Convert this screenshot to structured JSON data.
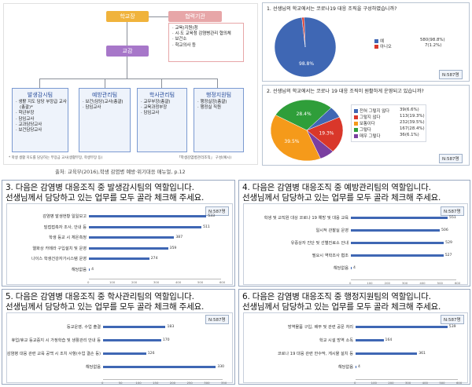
{
  "org": {
    "principal": "학교장",
    "vice": "교감",
    "partner_title": "협력기관",
    "partner_items": [
      "교육(지원)청",
      "시·도 교육청 감염병관리 협의체",
      "보건소",
      "학교의사 등"
    ],
    "teams": [
      {
        "title": "발생감시팀",
        "items": [
          "생활 지도 담당 부장급 교사",
          "(총괄)*",
          "학년부장",
          "담임교사",
          "교과담당교사",
          "보건담당교사"
        ]
      },
      {
        "title": "예방관리팀",
        "items": [
          "보건(담당)교사(총괄)",
          "담임교사"
        ]
      },
      {
        "title": "학사관리팀",
        "items": [
          "교무부장(총괄)",
          "교육과정부장",
          "담임교사"
        ]
      },
      {
        "title": "행정지원팀",
        "items": [
          "행정실장(총괄)",
          "행정실 직원"
        ]
      }
    ],
    "footnote": "* 학생 생활 지도를 담당하는 부장급 교사(생활부장, 학생부장 등)",
    "footnote2": "「학생감염병관리조직」 구성(예시)",
    "source": "출처: 교육부(2016),학생 감염병 예방·위기대응 매뉴얼, p.12"
  },
  "colors": {
    "principal": "#f0b33c",
    "vice": "#a777c9",
    "partner": "#e7a6a8",
    "team_border": "#7b9ad1",
    "team_fill": "#eef3fb",
    "bar": "#3f67b4",
    "pie1_yes": "#3f67b4",
    "pie1_no": "#d9372a",
    "pie2": [
      "#3f67b4",
      "#d9372a",
      "#f59a1a",
      "#2f9e3a",
      "#7a3fa0"
    ]
  },
  "q1": {
    "title": "1. 선생님의 학교에서는 코로나19 대응 조직을 구성하였습니까?",
    "n": "N:587명",
    "pct_label": "98.8%"
  },
  "q2": {
    "title": "2. 선생님의 학교에서는 코로나 19 대응 조직이 원활하게 운영되고 있습니까?",
    "n": "N:587명",
    "pct_labels": [
      "28.4%",
      "39.5%",
      "19.3%"
    ]
  },
  "q3": {
    "title": "3. 다음은 감염병 대응조직 중 발생감시팀의 역할입니다.\n선생님께서 담당하고 있는 업무를 모두 골라 체크해 주세요.",
    "n": "N:587명"
  },
  "q4": {
    "title": "4. 다음은 감염병 대응조직 중 예방관리팀의 역할입니다.\n선생님께서 담당하고 있는 업무를 모두 골라 체크해 주세요.",
    "n": "N:587명"
  },
  "q5": {
    "title": "5. 다음은 감염병 대응조직 중 학사관리팀의 역할입니다.\n선생님께서 담당하고 있는 업무를 모두 골라 체크해 주세요.",
    "n": "N:587명"
  },
  "q6": {
    "title": "6. 다음은 감염병 대응조직 중 행정지원팀의 역할입니다.\n선생님께서 담당하고 있는 업무를 모두 골라 체크해 주세요.",
    "n": "N:587명"
  },
  "chart_data": [
    {
      "type": "pie",
      "title": "1. 선생님의 학교에서는 코로나19 대응 조직을 구성하였습니까?",
      "categories": [
        "예",
        "아니오"
      ],
      "values": [
        580,
        7
      ],
      "value_labels": [
        "580(98.8%)",
        "7(1.2%)"
      ],
      "legend": "right"
    },
    {
      "type": "pie",
      "title": "2. 선생님의 학교에서는 코로나 19 대응 조직이 원활하게 운영되고 있습니까?",
      "categories": [
        "전혀 그렇지 않다",
        "그렇지 않다",
        "보통이다",
        "그렇다",
        "매우 그렇다"
      ],
      "values": [
        39,
        113,
        232,
        167,
        36
      ],
      "value_labels": [
        "39(6.6%)",
        "113(19.3%)",
        "232(39.5%)",
        "167(28.4%)",
        "36(6.1%)"
      ],
      "legend": "right"
    },
    {
      "type": "bar",
      "title": "3. 발생감시팀",
      "categories": [
        "감염병 발생현황 일일보고",
        "밀접접촉자 조사, 안내 등",
        "학생 등교 시 체온측정",
        "열화상 카메라 구입설치 및 운영",
        "나이스 학생건강자가시스템 운영",
        "해당없음"
      ],
      "values": [
        533,
        511,
        387,
        359,
        274,
        4
      ],
      "xlim": [
        0,
        600
      ]
    },
    {
      "type": "bar",
      "title": "4. 예방관리팀",
      "categories": [
        "학생 및 교직원 대상 코로나 19 예방 및 대응 교육",
        "일시적 관찰실 운영",
        "유증상자 진단 및 선별진료소 안내",
        "필요시 역학조사 협조",
        "해당없음"
      ],
      "values": [
        551,
        506,
        529,
        527,
        4
      ],
      "xlim": [
        0,
        600
      ]
    },
    {
      "type": "bar",
      "title": "5. 학사관리팀",
      "categories": [
        "등교운영, 수업 출결",
        "휴업/휴교 등교중지 시 가정학습 및 생활관리 안내 등",
        "감염병 대응 관련 교육 공백 시 조치 사항(수업 결손 등)",
        "해당없음"
      ],
      "values": [
        183,
        170,
        126,
        330
      ],
      "xlim": [
        0,
        350
      ]
    },
    {
      "type": "bar",
      "title": "6. 행정지원팀",
      "categories": [
        "방역물품 구입, 배부 및 관련 공문 처리",
        "학교 시설 방역 소독",
        "코로나 19 대응 관련 한수막, 게시물 설치 등",
        "해당없음"
      ],
      "values": [
        539,
        164,
        361,
        4
      ],
      "xlim": [
        0,
        600
      ]
    }
  ]
}
